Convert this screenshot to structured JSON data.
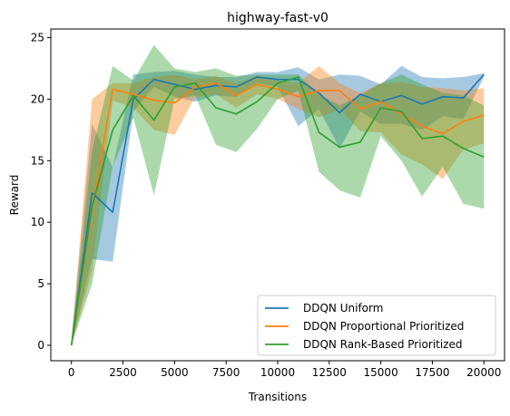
{
  "chart_data": {
    "type": "line",
    "title": "highway-fast-v0",
    "xlabel": "Transitions",
    "ylabel": "Reward",
    "xlim": [
      -1000,
      21000
    ],
    "ylim": [
      -1.25,
      25.7
    ],
    "x_ticks": [
      0,
      2500,
      5000,
      7500,
      10000,
      12500,
      15000,
      17500,
      20000
    ],
    "y_ticks": [
      0,
      5,
      10,
      15,
      20,
      25
    ],
    "grid": false,
    "legend_position": "lower-right",
    "x": [
      0,
      1000,
      2000,
      3000,
      4000,
      5000,
      6000,
      7000,
      8000,
      9000,
      10000,
      11000,
      12000,
      13000,
      14000,
      15000,
      16000,
      17000,
      18000,
      19000,
      20000
    ],
    "series": [
      {
        "name": "DDQN Uniform",
        "color": "#1f77b4",
        "values": [
          0,
          12.4,
          10.8,
          20.0,
          21.6,
          21.2,
          20.8,
          21.1,
          21.0,
          21.8,
          21.6,
          21.6,
          20.5,
          18.9,
          20.4,
          19.8,
          20.3,
          19.6,
          20.2,
          20.1,
          22.0
        ],
        "upper": [
          0.6,
          18.0,
          14.5,
          22.0,
          22.2,
          22.3,
          22.0,
          21.8,
          21.8,
          22.2,
          22.2,
          22.6,
          21.6,
          22.0,
          21.9,
          21.2,
          22.7,
          21.8,
          21.7,
          21.8,
          22.1
        ],
        "lower": [
          0.0,
          7.0,
          6.8,
          19.0,
          21.0,
          20.2,
          19.8,
          20.3,
          20.2,
          21.3,
          21.0,
          17.8,
          19.2,
          16.0,
          19.0,
          18.0,
          18.0,
          17.5,
          18.6,
          18.4,
          21.8
        ]
      },
      {
        "name": "DDQN Proportional Prioritized",
        "color": "#ff7f0e",
        "values": [
          0,
          11.0,
          20.8,
          20.4,
          19.9,
          19.7,
          21.0,
          21.3,
          20.3,
          21.2,
          20.8,
          20.2,
          20.7,
          20.7,
          19.2,
          19.8,
          18.8,
          17.8,
          17.2,
          18.2,
          18.7
        ],
        "upper": [
          0.4,
          20.0,
          21.3,
          21.3,
          21.8,
          22.0,
          21.6,
          21.9,
          21.3,
          21.9,
          21.5,
          21.3,
          22.7,
          21.3,
          20.5,
          21.3,
          21.4,
          21.0,
          20.9,
          20.7,
          20.9
        ],
        "lower": [
          0.0,
          6.0,
          19.9,
          19.3,
          17.5,
          17.1,
          20.2,
          20.4,
          19.3,
          20.4,
          20.0,
          19.2,
          18.5,
          19.2,
          17.4,
          17.3,
          15.5,
          14.7,
          13.5,
          15.9,
          16.4
        ]
      },
      {
        "name": "DDQN Rank-Based Prioritized",
        "color": "#2ca02c",
        "values": [
          0,
          11.3,
          17.5,
          20.3,
          18.3,
          21.0,
          21.3,
          19.3,
          18.8,
          19.8,
          21.3,
          21.8,
          17.3,
          16.1,
          16.5,
          19.3,
          19.0,
          16.8,
          17.0,
          16.0,
          15.3
        ],
        "upper": [
          0.3,
          15.8,
          22.7,
          21.5,
          24.4,
          22.5,
          22.2,
          22.5,
          21.9,
          22.0,
          22.0,
          22.0,
          20.4,
          19.5,
          20.3,
          21.3,
          22.0,
          21.2,
          20.5,
          20.3,
          19.5
        ],
        "lower": [
          0.0,
          5.0,
          14.5,
          18.5,
          12.2,
          20.0,
          20.3,
          16.3,
          15.7,
          17.6,
          20.0,
          20.7,
          14.1,
          12.6,
          12.0,
          17.0,
          15.0,
          12.1,
          14.5,
          11.5,
          11.1
        ]
      }
    ]
  }
}
